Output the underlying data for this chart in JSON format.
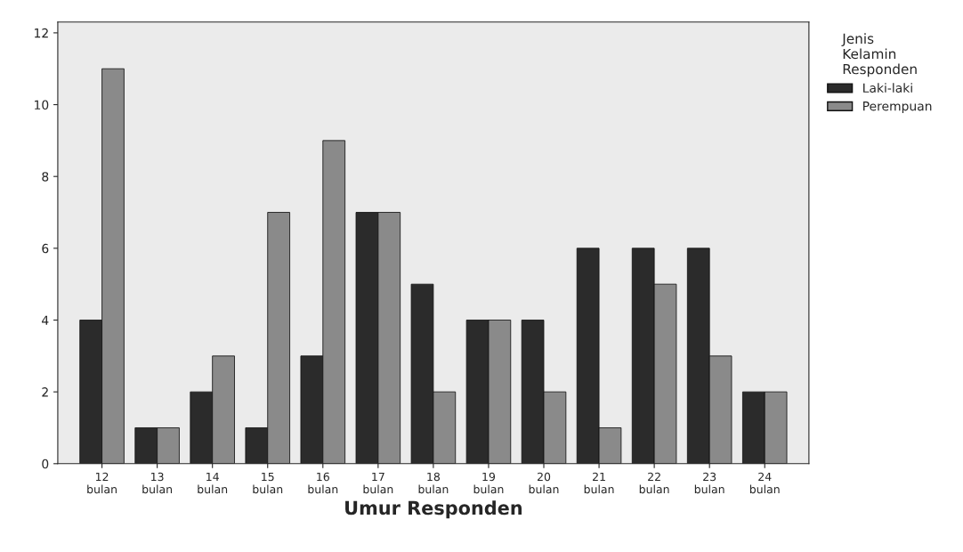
{
  "chart_data": {
    "type": "bar",
    "xlabel": "Umur Responden",
    "legend_title": "Jenis\nKelamin\nResponden",
    "categories": [
      "12\nbulan",
      "13\nbulan",
      "14\nbulan",
      "15\nbulan",
      "16\nbulan",
      "17\nbulan",
      "18\nbulan",
      "19\nbulan",
      "20\nbulan",
      "21\nbulan",
      "22\nbulan",
      "23\nbulan",
      "24\nbulan"
    ],
    "series": [
      {
        "name": "Laki-laki",
        "color": "#2b2b2b",
        "values": [
          4,
          1,
          2,
          1,
          3,
          7,
          5,
          4,
          4,
          6,
          6,
          6,
          2
        ]
      },
      {
        "name": "Perempuan",
        "color": "#8a8a8a",
        "values": [
          11,
          1,
          3,
          7,
          9,
          7,
          2,
          4,
          2,
          1,
          5,
          3,
          2
        ]
      }
    ],
    "ylim": [
      0,
      12.3
    ],
    "yticks": [
      0,
      2,
      4,
      6,
      8,
      10,
      12
    ],
    "grid": false,
    "legend": "top right"
  }
}
